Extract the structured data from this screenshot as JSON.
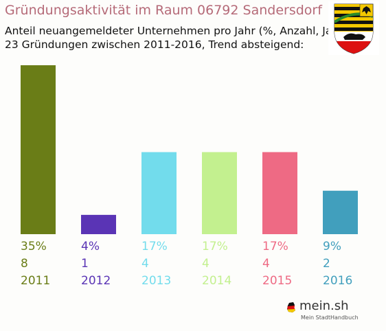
{
  "title": "Gründungsaktivität im Raum 06792 Sandersdorf",
  "subtitle_line1": "Anteil neuangemeldeter Unternehmen pro Jahr (%, Anzahl, Jahr)",
  "subtitle_line2": "23 Gründungen zwischen 2011-2016, Trend absteigend:",
  "chart_data": {
    "type": "bar",
    "categories": [
      "2011",
      "2012",
      "2013",
      "2014",
      "2015",
      "2016"
    ],
    "values": [
      35,
      4,
      17,
      17,
      17,
      9
    ],
    "counts": [
      8,
      1,
      4,
      4,
      4,
      2
    ],
    "percent_labels": [
      "35%",
      "4%",
      "17%",
      "17%",
      "17%",
      "9%"
    ],
    "colors": [
      "#6a7d17",
      "#5a34b5",
      "#72dcec",
      "#c3f08f",
      "#ee6a84",
      "#419fbd"
    ],
    "ylim": [
      0,
      35
    ],
    "grid": false
  },
  "logo": {
    "text": "mein.sh",
    "tagline": "Mein StadtHandbuch"
  },
  "icons": {
    "coat_of_arms": "saxony-anhalt-coat-of-arms-icon",
    "flag": "germany-map-flag-icon"
  }
}
